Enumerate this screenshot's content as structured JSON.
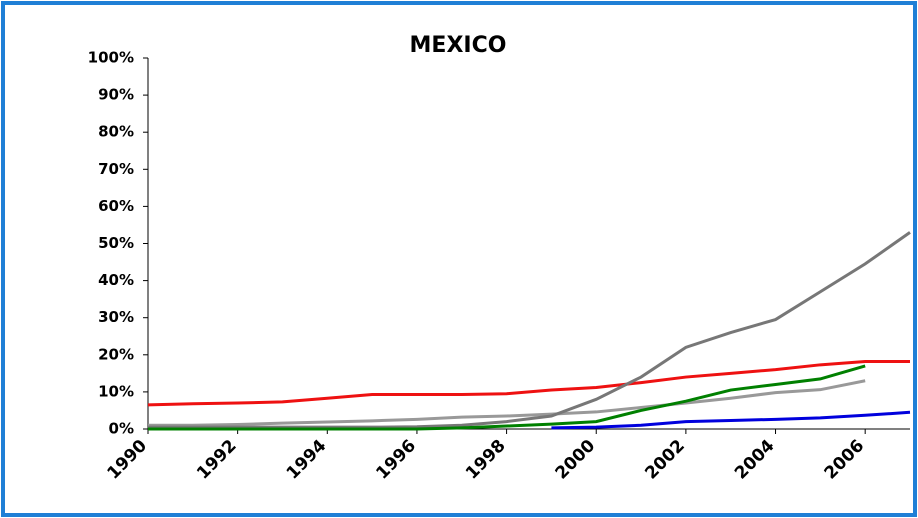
{
  "chart_data": {
    "type": "line",
    "title": "MEXICO",
    "x": [
      1990,
      1991,
      1992,
      1993,
      1994,
      1995,
      1996,
      1997,
      1998,
      1999,
      2000,
      2001,
      2002,
      2003,
      2004,
      2005,
      2006,
      2007
    ],
    "xlim": [
      1990,
      2007
    ],
    "xticks": [
      1990,
      1992,
      1994,
      1996,
      1998,
      2000,
      2002,
      2004,
      2006
    ],
    "ylim": [
      0,
      100
    ],
    "yticks": [
      {
        "value": 0,
        "label": "0%"
      },
      {
        "value": 10,
        "label": "10%"
      },
      {
        "value": 20,
        "label": "20%"
      },
      {
        "value": 30,
        "label": "30%"
      },
      {
        "value": 40,
        "label": "40%"
      },
      {
        "value": 50,
        "label": "50%"
      },
      {
        "value": 60,
        "label": "60%"
      },
      {
        "value": 70,
        "label": "70%"
      },
      {
        "value": 80,
        "label": "80%"
      },
      {
        "value": 90,
        "label": "90%"
      },
      {
        "value": 100,
        "label": "100%"
      }
    ],
    "series": [
      {
        "color": "#ee1111",
        "values": [
          6.5,
          6.8,
          7,
          7.3,
          8.3,
          9.3,
          9.3,
          9.3,
          9.5,
          10.5,
          11.2,
          12.5,
          14,
          15,
          16,
          17.3,
          18.2,
          18.2
        ]
      },
      {
        "color": "#999999",
        "values": [
          1,
          1,
          1.2,
          1.6,
          1.9,
          2.2,
          2.6,
          3.2,
          3.5,
          4,
          4.6,
          5.8,
          7,
          8.3,
          9.8,
          10.6,
          13,
          null
        ]
      },
      {
        "color": "#777777",
        "values": [
          0.5,
          0.5,
          0.5,
          0.5,
          0.5,
          0.5,
          0.6,
          1,
          2,
          3.5,
          8,
          14,
          22,
          26,
          29.5,
          37,
          44.5,
          53
        ]
      },
      {
        "color": "#008000",
        "values": [
          0,
          0,
          0,
          0,
          0,
          0,
          0,
          0.3,
          0.8,
          1.3,
          2,
          5,
          7.5,
          10.5,
          12,
          13.5,
          17,
          null
        ]
      },
      {
        "color": "#0000dd",
        "values": [
          null,
          null,
          null,
          null,
          null,
          null,
          null,
          null,
          null,
          0.3,
          0.5,
          1,
          2,
          2.3,
          2.6,
          3,
          3.7,
          4.5
        ]
      }
    ]
  }
}
